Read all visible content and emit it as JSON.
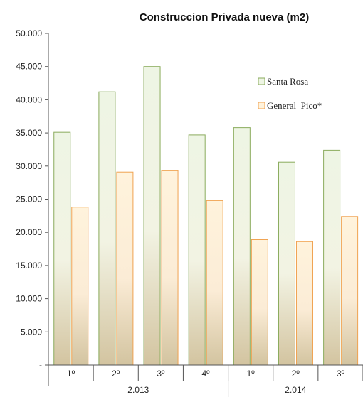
{
  "chart_data": {
    "type": "bar",
    "title": "Construccion Privada nueva (m2)",
    "xlabel": "",
    "ylabel": "",
    "categories": [
      "1º",
      "2º",
      "3º",
      "4º",
      "1º",
      "2º",
      "3º"
    ],
    "groups": [
      {
        "label": "2.013",
        "count": 4
      },
      {
        "label": "2.014",
        "count": 3
      }
    ],
    "series": [
      {
        "name": "Santa Rosa",
        "values": [
          35100,
          41200,
          45000,
          34700,
          35800,
          30600,
          32400
        ]
      },
      {
        "name": "General  Pico*",
        "values": [
          23800,
          29100,
          29300,
          24800,
          18900,
          18600,
          22400
        ]
      }
    ],
    "ylim": [
      0,
      50000
    ],
    "yticks": [
      "-",
      "5.000",
      "10.000",
      "15.000",
      "20.000",
      "25.000",
      "30.000",
      "35.000",
      "40.000",
      "45.000",
      "50.000"
    ],
    "grid": false,
    "legend_position": "right",
    "colors": {
      "series1_top": "#eef5e4",
      "series1_stroke": "#8aab5c",
      "series2_top": "#fff3dc",
      "series2_stroke": "#f0a250",
      "bar_bottom": "#d3c4a0"
    }
  }
}
